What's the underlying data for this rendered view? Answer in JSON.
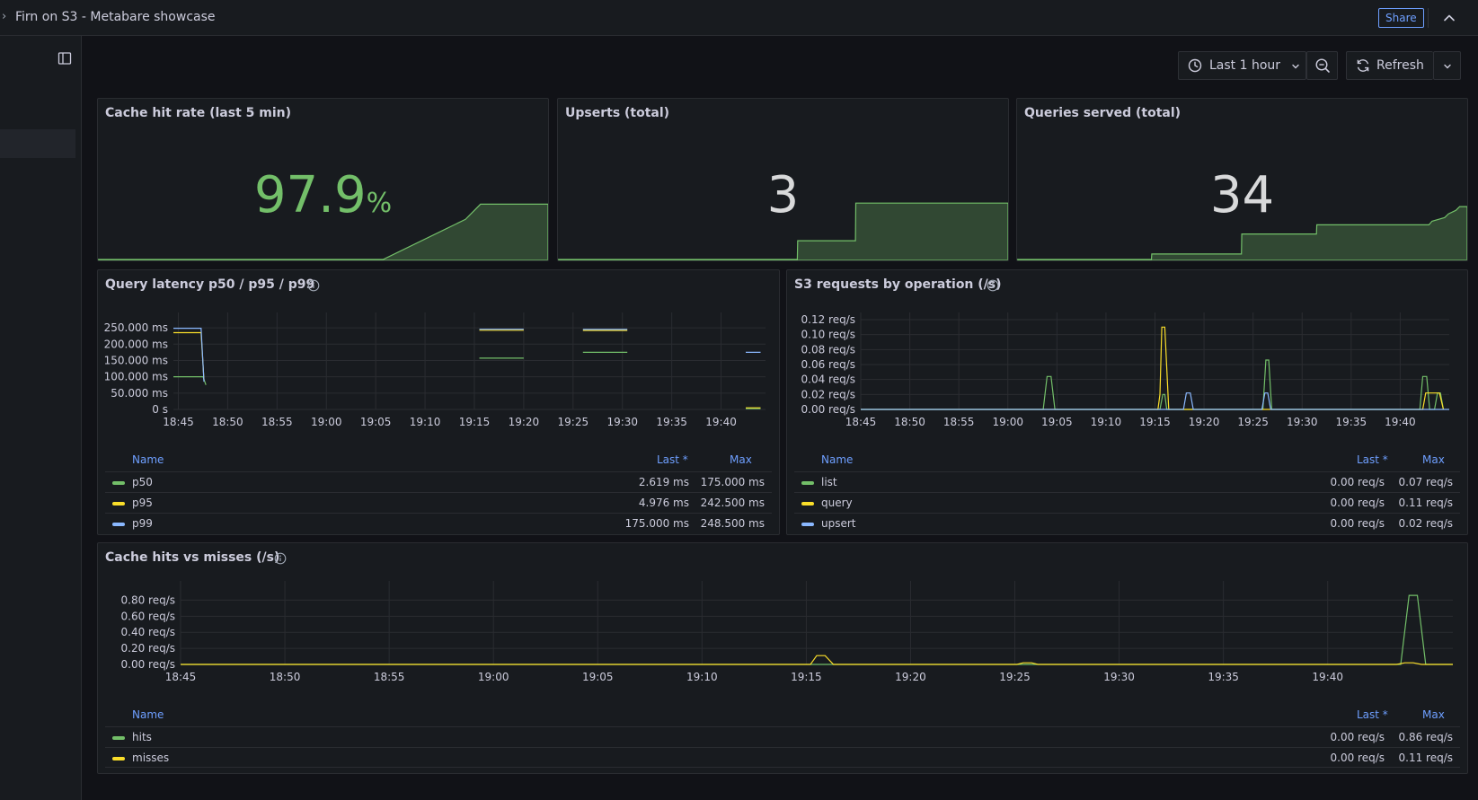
{
  "topbar": {
    "title": "Firn on S3 - Metabare showcase",
    "share": "Share"
  },
  "toolbar": {
    "time_range": "Last 1 hour",
    "refresh": "Refresh"
  },
  "colors": {
    "green": "#73bf69",
    "yellow": "#fade2a",
    "blue": "#8ab8ff",
    "accent": "#6e9fff"
  },
  "stats": [
    {
      "title": "Cache hit rate (last 5 min)",
      "value": "97.9",
      "unit": "%"
    },
    {
      "title": "Upserts (total)",
      "value": "3",
      "unit": ""
    },
    {
      "title": "Queries served (total)",
      "value": "34",
      "unit": ""
    }
  ],
  "latency": {
    "title": "Query latency p50 / p95 / p99",
    "legend": {
      "name_header": "Name",
      "last_header": "Last *",
      "max_header": "Max",
      "rows": [
        {
          "name": "p50",
          "last": "2.619 ms",
          "max": "175.000 ms",
          "color": "#73bf69"
        },
        {
          "name": "p95",
          "last": "4.976 ms",
          "max": "242.500 ms",
          "color": "#fade2a"
        },
        {
          "name": "p99",
          "last": "175.000 ms",
          "max": "248.500 ms",
          "color": "#8ab8ff"
        }
      ]
    }
  },
  "s3": {
    "title": "S3 requests by operation (/s)",
    "legend": {
      "name_header": "Name",
      "last_header": "Last *",
      "max_header": "Max",
      "rows": [
        {
          "name": "list",
          "last": "0.00 req/s",
          "max": "0.07 req/s",
          "color": "#73bf69"
        },
        {
          "name": "query",
          "last": "0.00 req/s",
          "max": "0.11 req/s",
          "color": "#fade2a"
        },
        {
          "name": "upsert",
          "last": "0.00 req/s",
          "max": "0.02 req/s",
          "color": "#8ab8ff"
        }
      ]
    }
  },
  "cache": {
    "title": "Cache hits vs misses (/s)",
    "legend": {
      "name_header": "Name",
      "last_header": "Last *",
      "max_header": "Max",
      "rows": [
        {
          "name": "hits",
          "last": "0.00 req/s",
          "max": "0.86 req/s",
          "color": "#73bf69"
        },
        {
          "name": "misses",
          "last": "0.00 req/s",
          "max": "0.11 req/s",
          "color": "#fade2a"
        }
      ]
    }
  },
  "chart_data": [
    {
      "id": "cache_hit_rate_sparkline",
      "type": "area",
      "x_range": [
        0,
        60
      ],
      "series": [
        {
          "x": [
            0,
            38,
            49,
            51,
            60
          ],
          "y": [
            0,
            0,
            50,
            69,
            69
          ]
        }
      ]
    },
    {
      "id": "upserts_sparkline",
      "type": "area",
      "x_range": [
        0,
        60
      ],
      "series": [
        {
          "x": [
            0,
            31.9,
            31.95,
            39.65,
            39.7,
            60
          ],
          "y": [
            0,
            0,
            1,
            1,
            3,
            3
          ]
        }
      ]
    },
    {
      "id": "queries_sparkline",
      "type": "area",
      "x_range": [
        0,
        60
      ],
      "series": [
        {
          "x": [
            0,
            17.9,
            17.95,
            29.9,
            29.95,
            39.9,
            39.95,
            54.9,
            55.3,
            57,
            57.5,
            58.5,
            59,
            60
          ],
          "y": [
            0,
            0,
            3,
            3,
            14,
            14,
            19,
            19,
            21,
            23,
            25,
            27,
            29,
            29
          ]
        }
      ]
    },
    {
      "id": "query_latency",
      "type": "line",
      "x_ticks": [
        "18:45",
        "18:50",
        "18:55",
        "19:00",
        "19:05",
        "19:10",
        "19:15",
        "19:20",
        "19:25",
        "19:30",
        "19:35",
        "19:40"
      ],
      "y_ticks": [
        "0 s",
        "50.000 ms",
        "100.000 ms",
        "150.000 ms",
        "200.000 ms",
        "250.000 ms"
      ],
      "x_unit": "minutes since 18:45",
      "x_range": [
        -0.5,
        59.5
      ],
      "ylim": [
        0,
        275
      ],
      "series": [
        {
          "name": "p50",
          "segments": [
            {
              "x": [
                -0.5,
                2.5,
                2.8
              ],
              "y": [
                100,
                100,
                75
              ]
            },
            {
              "x": [
                30.5,
                35
              ],
              "y": [
                157,
                157
              ]
            },
            {
              "x": [
                41,
                45.5
              ],
              "y": [
                175,
                175
              ]
            },
            {
              "x": [
                57.5,
                59
              ],
              "y": [
                2.6,
                2.6
              ]
            }
          ]
        },
        {
          "name": "p95",
          "segments": [
            {
              "x": [
                -0.5,
                2.3,
                2.6
              ],
              "y": [
                235,
                235,
                90
              ]
            },
            {
              "x": [
                30.5,
                35
              ],
              "y": [
                242.5,
                242.5
              ]
            },
            {
              "x": [
                41,
                45.5
              ],
              "y": [
                242,
                242
              ]
            },
            {
              "x": [
                57.5,
                59
              ],
              "y": [
                5,
                5
              ]
            }
          ]
        },
        {
          "name": "p99",
          "segments": [
            {
              "x": [
                -0.5,
                2.3,
                2.6
              ],
              "y": [
                248.5,
                248.5,
                85
              ]
            },
            {
              "x": [
                30.5,
                35
              ],
              "y": [
                245.5,
                245.5
              ]
            },
            {
              "x": [
                41,
                45.5
              ],
              "y": [
                245,
                245
              ]
            },
            {
              "x": [
                57.5,
                59
              ],
              "y": [
                175,
                175
              ]
            }
          ]
        }
      ]
    },
    {
      "id": "s3_requests",
      "type": "line",
      "x_ticks": [
        "18:45",
        "18:50",
        "18:55",
        "19:00",
        "19:05",
        "19:10",
        "19:15",
        "19:20",
        "19:25",
        "19:30",
        "19:35",
        "19:40"
      ],
      "y_ticks": [
        "0.00 req/s",
        "0.02 req/s",
        "0.04 req/s",
        "0.06 req/s",
        "0.08 req/s",
        "0.10 req/s",
        "0.12 req/s"
      ],
      "x_unit": "minutes since 18:45",
      "x_range": [
        0,
        60
      ],
      "ylim": [
        0,
        0.12
      ],
      "series": [
        {
          "name": "list",
          "x": [
            0,
            18.6,
            19.0,
            19.4,
            19.8,
            30.5,
            30.8,
            31.0,
            31.2,
            41,
            41.3,
            41.6,
            41.9,
            57,
            57.3,
            57.7,
            58.0,
            58.5,
            58.8,
            59.1,
            59.4
          ],
          "y": [
            0,
            0,
            0.044,
            0.044,
            0,
            0,
            0.02,
            0.02,
            0,
            0,
            0.066,
            0.066,
            0,
            0,
            0.044,
            0.044,
            0,
            0,
            0.022,
            0.022,
            0
          ]
        },
        {
          "name": "query",
          "x": [
            0,
            30.3,
            30.5,
            30.7,
            31.0,
            31.4,
            57.3,
            57.6,
            58.0,
            58.4,
            58.7,
            59.0,
            59.4
          ],
          "y": [
            0,
            0,
            0.02,
            0.11,
            0.11,
            0,
            0,
            0.022,
            0.022,
            0.022,
            0.022,
            0.022,
            0
          ]
        },
        {
          "name": "upsert",
          "x": [
            0,
            32.9,
            33.2,
            33.6,
            33.9,
            40.9,
            41.2,
            41.5,
            41.8,
            60
          ],
          "y": [
            0,
            0,
            0.022,
            0.022,
            0,
            0,
            0.022,
            0.022,
            0,
            0
          ]
        }
      ]
    },
    {
      "id": "cache_hits_misses",
      "type": "line",
      "x_ticks": [
        "18:45",
        "18:50",
        "18:55",
        "19:00",
        "19:05",
        "19:10",
        "19:15",
        "19:20",
        "19:25",
        "19:30",
        "19:35",
        "19:40"
      ],
      "y_ticks": [
        "0.00 req/s",
        "0.20 req/s",
        "0.40 req/s",
        "0.60 req/s",
        "0.80 req/s"
      ],
      "x_unit": "minutes since 18:45",
      "x_range": [
        0,
        61
      ],
      "ylim": [
        0,
        0.95
      ],
      "series": [
        {
          "name": "hits",
          "x": [
            0,
            58.5,
            58.9,
            59.3,
            59.7,
            61
          ],
          "y": [
            0,
            0,
            0.86,
            0.86,
            0,
            0
          ]
        },
        {
          "name": "misses",
          "x": [
            0,
            30.2,
            30.5,
            30.9,
            31.3,
            40.1,
            40.4,
            40.8,
            41.1,
            58.3,
            58.7,
            59.1,
            59.5,
            61
          ],
          "y": [
            0,
            0,
            0.11,
            0.11,
            0,
            0,
            0.02,
            0.02,
            0,
            0,
            0.02,
            0.02,
            0,
            0
          ]
        }
      ]
    }
  ]
}
